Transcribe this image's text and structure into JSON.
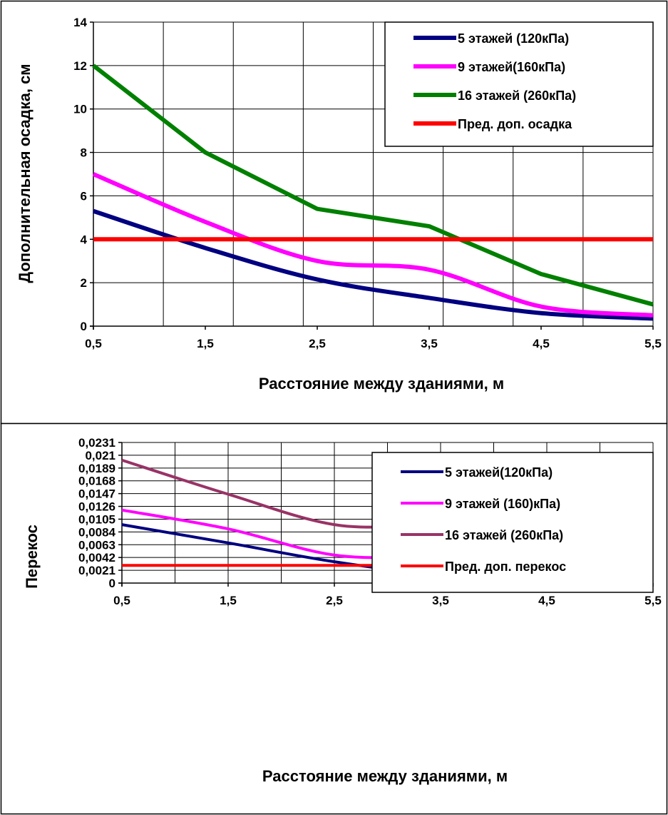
{
  "chart_data": [
    {
      "type": "line",
      "title": "",
      "xlabel": "Расстояние между зданиями, м",
      "ylabel": "Дополнительная осадка, см",
      "x_tick_labels": [
        "0,5",
        "1,5",
        "2,5",
        "3,5",
        "4,5",
        "5,5"
      ],
      "y_tick_labels": [
        "0",
        "2",
        "4",
        "6",
        "8",
        "10",
        "12",
        "14"
      ],
      "xlim": [
        0.5,
        5.5
      ],
      "ylim": [
        0,
        14
      ],
      "grid": true,
      "legend_position": "top-right",
      "x": [
        0.5,
        1.5,
        2.5,
        3.5,
        4.5,
        5.5
      ],
      "series": [
        {
          "name": "5 этажей (120кПа)",
          "color": "#000080",
          "values": [
            5.3,
            3.6,
            2.15,
            1.3,
            0.6,
            0.35
          ]
        },
        {
          "name": "9 этажей(160кПа)",
          "color": "#ff00ff",
          "values": [
            7.0,
            4.8,
            3.0,
            2.6,
            0.9,
            0.5
          ]
        },
        {
          "name": "16 этажей (260кПа)",
          "color": "#008000",
          "values": [
            12.0,
            8.0,
            5.4,
            4.6,
            2.4,
            1.0
          ]
        },
        {
          "name": "Пред. доп. осадка",
          "color": "#ff0000",
          "values": [
            4,
            4,
            4,
            4,
            4,
            4
          ]
        }
      ]
    },
    {
      "type": "line",
      "title": "",
      "xlabel": "Расстояние между зданиями, м",
      "ylabel": "Перекос",
      "x_tick_labels": [
        "0,5",
        "1,5",
        "2,5",
        "3,5",
        "4,5",
        "5,5"
      ],
      "y_tick_labels": [
        "0",
        "0,0021",
        "0,0042",
        "0,0063",
        "0,0084",
        "0,0105",
        "0,0126",
        "0,0147",
        "0,0168",
        "0,0189",
        "0,021",
        "0,0231"
      ],
      "xlim": [
        0.5,
        5.5
      ],
      "ylim": [
        0,
        0.0231
      ],
      "grid": true,
      "legend_position": "top-right",
      "x": [
        0.5,
        1.5,
        2.5,
        3.5,
        4.5,
        5.5
      ],
      "series": [
        {
          "name": "5 этажей(120кПа)",
          "color": "#000080",
          "values": [
            0.0096,
            0.0066,
            0.0035,
            0.0013,
            0.0005,
            0.0005
          ]
        },
        {
          "name": "9 этажей (160)кПа)",
          "color": "#ff00ff",
          "values": [
            0.012,
            0.0089,
            0.0046,
            0.0039,
            0.0007,
            0.0006
          ]
        },
        {
          "name": "16 этажей (260кПа)",
          "color": "#993366",
          "values": [
            0.0202,
            0.0146,
            0.0096,
            0.0089,
            0.0044,
            0.0019
          ]
        },
        {
          "name": "Пред. доп. перекос",
          "color": "#ff0000",
          "values": [
            0.0029,
            0.0029,
            0.0029,
            0.0029,
            0.0029,
            0.0029
          ]
        }
      ]
    }
  ]
}
